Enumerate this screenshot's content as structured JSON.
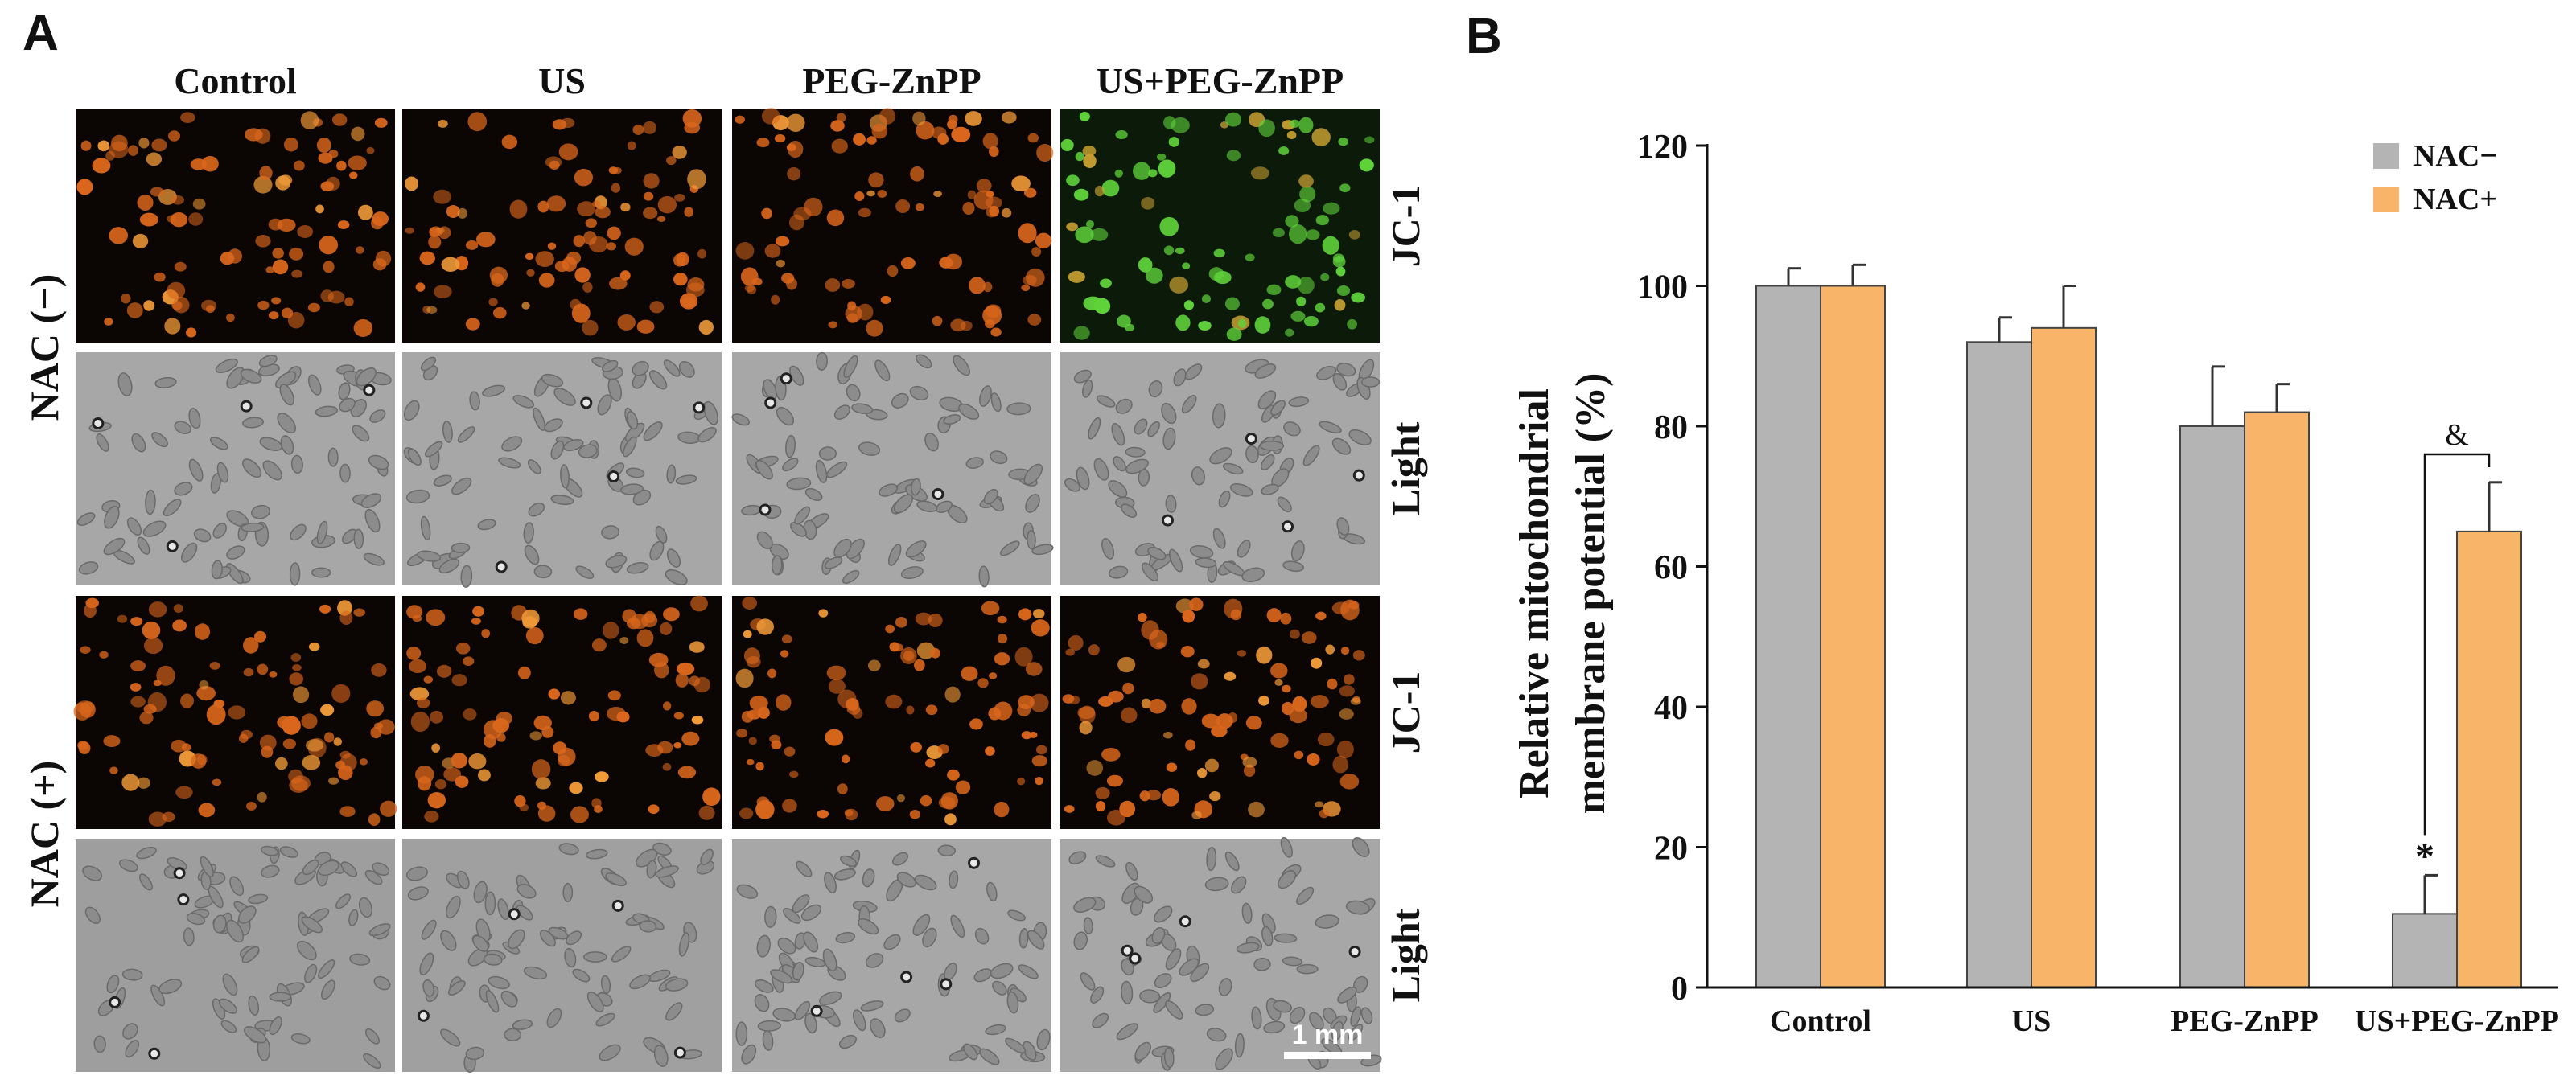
{
  "panel_a": {
    "label": "A",
    "columns": [
      "Control",
      "US",
      "PEG-ZnPP",
      "US+PEG-ZnPP"
    ],
    "row_groups": [
      "NAC (−)",
      "NAC (+)"
    ],
    "row_labels": [
      "JC-1",
      "Light",
      "JC-1",
      "Light"
    ],
    "row_kinds": [
      "fluor",
      "light",
      "fluor",
      "light"
    ],
    "green_cell": [
      0,
      3
    ],
    "scale_bar": "1 mm"
  },
  "panel_b": {
    "label": "B",
    "annotations": {
      "star": "*",
      "ampersand": "&"
    }
  },
  "colors": {
    "nac_minus": "#b4b4b4",
    "nac_plus": "#f8b469",
    "fluor_bg": "#0b0503",
    "cell_orange": "#d9661c",
    "cell_green": "#5fd23a",
    "light_bg": "#a7a7a7"
  },
  "chart_data": {
    "type": "bar",
    "categories": [
      "Control",
      "US",
      "PEG-ZnPP",
      "US+PEG-ZnPP"
    ],
    "series": [
      {
        "name": "NAC−",
        "values": [
          100,
          92,
          80,
          10.5
        ],
        "errors": [
          2.5,
          3.5,
          8.5,
          5.5
        ]
      },
      {
        "name": "NAC+",
        "values": [
          100,
          94,
          82,
          65
        ],
        "errors": [
          3,
          6,
          4,
          7
        ]
      }
    ],
    "ylabel_line1": "Relative mitochondrial",
    "ylabel_line2": "membrane potential (%)",
    "ylim": [
      0,
      120
    ],
    "yticks": [
      "0",
      "20",
      "40",
      "60",
      "80",
      "100",
      "120"
    ],
    "legend_position": "top-right",
    "grid": false
  }
}
